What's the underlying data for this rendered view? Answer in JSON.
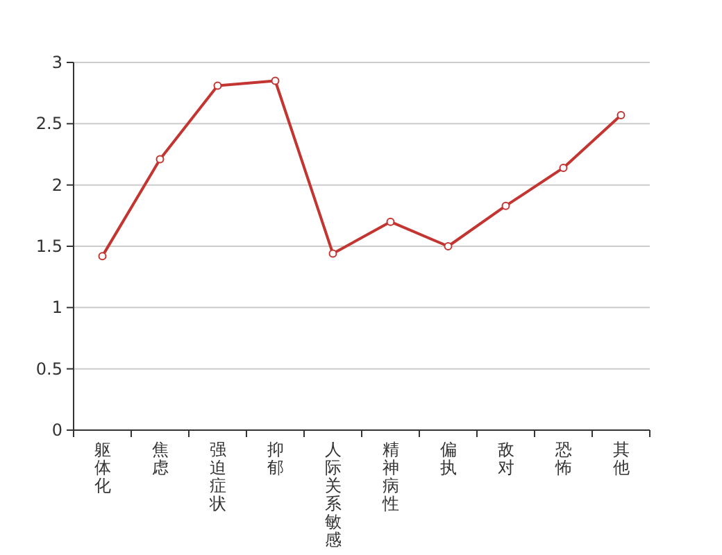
{
  "chart_data": {
    "type": "line",
    "categories": [
      "躯体化",
      "焦虑",
      "强迫症状",
      "抑郁",
      "人际关系敏感",
      "精神病性",
      "偏执",
      "敌对",
      "恐怖",
      "其他"
    ],
    "series": [
      {
        "color": "#c23531",
        "values": [
          1.42,
          2.21,
          2.81,
          2.85,
          1.44,
          1.7,
          1.5,
          1.83,
          2.14,
          2.57
        ]
      }
    ],
    "ylim": [
      0,
      3
    ],
    "yticks": [
      0,
      0.5,
      1,
      1.5,
      2,
      2.5,
      3
    ],
    "grid": "y",
    "marker": "circle",
    "line_style": "solid"
  }
}
